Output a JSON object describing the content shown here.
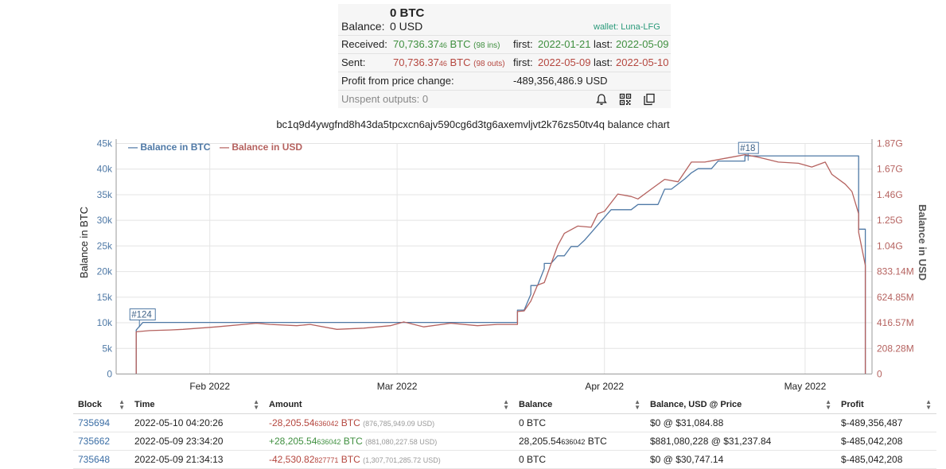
{
  "summary": {
    "btc_balance": "0 BTC",
    "balance_label": "Balance:",
    "usd_balance": "0 USD",
    "wallet": "wallet: Luna-LFG",
    "received_label": "Received:",
    "received_amount": "70,736.37",
    "received_decimals": "46",
    "received_unit": "BTC",
    "received_count": "(98 ins)",
    "received_first_label": "first:",
    "received_first": "2022-01-21",
    "received_last_label": "last:",
    "received_last": "2022-05-09",
    "sent_label": "Sent:",
    "sent_amount": "70,736.37",
    "sent_decimals": "46",
    "sent_unit": "BTC",
    "sent_count": "(98 outs)",
    "sent_first_label": "first:",
    "sent_first": "2022-05-09",
    "sent_last_label": "last:",
    "sent_last": "2022-05-10",
    "profit_label": "Profit from price change:",
    "profit_value": "-489,356,486.9 USD",
    "unspent_label": "Unspent outputs: 0",
    "icons": [
      "bell-icon",
      "qr-code-icon",
      "copy-icon"
    ]
  },
  "chart_title": "bc1q9d4ywgfnd8h43da5tpcxcn6ajv590cg6d3tg6axemvljvt2k76zs50tv4q balance chart",
  "chart_data": {
    "type": "line",
    "title": "bc1q9d4ywgfnd8h43da5tpcxcn6ajv590cg6d3tg6axemvljvt2k76zs50tv4q balance chart",
    "ylabel_left": "Balance in BTC",
    "ylabel_right": "Balance in USD",
    "legend": [
      "— Balance in BTC",
      "— Balance in USD"
    ],
    "legend_position": "top-left",
    "grid": true,
    "xlim": [
      "2022-01-18",
      "2022-05-11"
    ],
    "x_ticks": [
      "Feb 2022",
      "Mar 2022",
      "Apr 2022",
      "May 2022"
    ],
    "y_left_ticks": [
      "0",
      "5k",
      "10k",
      "15k",
      "20k",
      "25k",
      "30k",
      "35k",
      "40k",
      "45k"
    ],
    "y_left_lim": [
      0,
      45000
    ],
    "y_right_ticks": [
      "0",
      "208.28M",
      "416.57M",
      "624.85M",
      "833.14M",
      "1.04G",
      "1.25G",
      "1.46G",
      "1.67G",
      "1.87G"
    ],
    "y_right_lim": [
      0,
      1874500000
    ],
    "colors": {
      "btc": "#4f79a6",
      "usd": "#b5625f"
    },
    "annotations": [
      {
        "label": "#124",
        "x": "2022-01-21",
        "y": 10000
      },
      {
        "label": "#18",
        "x": "2022-04-22",
        "y": 42500
      }
    ],
    "series": [
      {
        "name": "Balance in BTC",
        "axis": "left",
        "x": [
          "2022-01-21",
          "2022-01-21",
          "2022-01-22",
          "2022-03-19",
          "2022-03-19",
          "2022-03-20",
          "2022-03-21",
          "2022-03-21",
          "2022-03-22",
          "2022-03-23",
          "2022-03-23",
          "2022-03-24",
          "2022-03-25",
          "2022-03-26",
          "2022-03-27",
          "2022-03-28",
          "2022-03-29",
          "2022-03-30",
          "2022-03-31",
          "2022-04-01",
          "2022-04-02",
          "2022-04-05",
          "2022-04-06",
          "2022-04-09",
          "2022-04-10",
          "2022-04-11",
          "2022-04-13",
          "2022-04-14",
          "2022-04-15",
          "2022-04-17",
          "2022-04-18",
          "2022-04-22",
          "2022-04-22",
          "2022-05-09",
          "2022-05-09",
          "2022-05-10",
          "2022-05-10"
        ],
        "y": [
          0,
          8500,
          10000,
          10000,
          12400,
          12400,
          15500,
          17200,
          17200,
          20500,
          21500,
          21500,
          23000,
          23000,
          24800,
          24800,
          26000,
          27500,
          29000,
          30500,
          32000,
          32000,
          33000,
          33000,
          36000,
          36000,
          38000,
          39200,
          40000,
          40000,
          41500,
          41500,
          42500,
          42500,
          28200,
          28200,
          0
        ]
      },
      {
        "name": "Balance in USD",
        "axis": "right",
        "x": [
          "2022-01-21",
          "2022-01-21",
          "2022-01-23",
          "2022-01-26",
          "2022-01-28",
          "2022-02-02",
          "2022-02-08",
          "2022-02-10",
          "2022-02-14",
          "2022-02-16",
          "2022-02-20",
          "2022-02-24",
          "2022-02-28",
          "2022-03-02",
          "2022-03-05",
          "2022-03-09",
          "2022-03-13",
          "2022-03-16",
          "2022-03-19",
          "2022-03-19",
          "2022-03-20",
          "2022-03-21",
          "2022-03-22",
          "2022-03-23",
          "2022-03-25",
          "2022-03-26",
          "2022-03-28",
          "2022-03-30",
          "2022-03-31",
          "2022-04-01",
          "2022-04-03",
          "2022-04-05",
          "2022-04-06",
          "2022-04-08",
          "2022-04-10",
          "2022-04-12",
          "2022-04-14",
          "2022-04-16",
          "2022-04-18",
          "2022-04-20",
          "2022-04-22",
          "2022-04-24",
          "2022-04-27",
          "2022-04-30",
          "2022-05-02",
          "2022-05-04",
          "2022-05-05",
          "2022-05-07",
          "2022-05-08",
          "2022-05-09",
          "2022-05-09",
          "2022-05-10",
          "2022-05-10"
        ],
        "y": [
          0,
          340000000,
          350000000,
          355000000,
          360000000,
          380000000,
          410000000,
          400000000,
          390000000,
          400000000,
          360000000,
          370000000,
          390000000,
          420000000,
          380000000,
          410000000,
          390000000,
          400000000,
          400000000,
          505000000,
          510000000,
          590000000,
          720000000,
          740000000,
          1040000000,
          1140000000,
          1200000000,
          1190000000,
          1300000000,
          1320000000,
          1460000000,
          1440000000,
          1420000000,
          1500000000,
          1580000000,
          1560000000,
          1720000000,
          1720000000,
          1740000000,
          1760000000,
          1780000000,
          1760000000,
          1720000000,
          1710000000,
          1680000000,
          1720000000,
          1620000000,
          1540000000,
          1480000000,
          1300000000,
          1150000000,
          880000000,
          0
        ]
      }
    ]
  },
  "table": {
    "headers": [
      "Block",
      "Time",
      "Amount",
      "Balance",
      "Balance, USD @ Price",
      "Profit"
    ],
    "rows": [
      {
        "block": "735694",
        "time": "2022-05-10 04:20:26",
        "amount": "-28,205.54",
        "amount_dec": "636042",
        "amount_unit": "BTC",
        "amount_usd": "(876,785,949.09 USD)",
        "balance": "0 BTC",
        "balance_dec": "",
        "balance_unit": "",
        "balance_usd": "$0 @ $31,084.88",
        "profit": "$-489,356,487",
        "sign": "neg"
      },
      {
        "block": "735662",
        "time": "2022-05-09 23:34:20",
        "amount": "+28,205.54",
        "amount_dec": "636042",
        "amount_unit": "BTC",
        "amount_usd": "(881,080,227.58 USD)",
        "balance": "28,205.54",
        "balance_dec": "636042",
        "balance_unit": "BTC",
        "balance_usd": "$881,080,228 @ $31,237.84",
        "profit": "$-485,042,208",
        "sign": "pos"
      },
      {
        "block": "735648",
        "time": "2022-05-09 21:34:13",
        "amount": "-42,530.82",
        "amount_dec": "827771",
        "amount_unit": "BTC",
        "amount_usd": "(1,307,701,285.72 USD)",
        "balance": "0 BTC",
        "balance_dec": "",
        "balance_unit": "",
        "balance_usd": "$0 @ $30,747.14",
        "profit": "$-485,042,208",
        "sign": "neg"
      }
    ]
  }
}
